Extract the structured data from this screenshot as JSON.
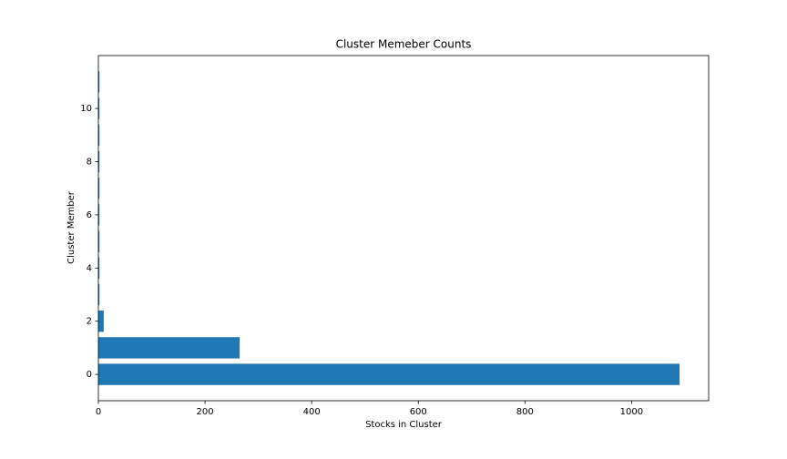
{
  "chart_data": {
    "type": "barh",
    "title": "Cluster Memeber Counts",
    "x_label": "Stocks in Cluster",
    "y_label": "Cluster Member",
    "y": [
      0,
      1,
      2,
      3,
      4,
      5,
      6,
      7,
      8,
      9,
      10,
      11
    ],
    "values": [
      1090,
      265,
      10,
      2,
      2,
      2,
      2,
      2,
      2,
      2,
      2,
      2
    ],
    "color": "#1f77b4",
    "xlim": [
      0,
      1144.5
    ],
    "xticks": [
      0,
      200,
      400,
      600,
      800,
      1000
    ],
    "ylim": [
      -0.99,
      11.99
    ],
    "yticks": [
      0,
      2,
      4,
      6,
      8,
      10
    ],
    "grid": false
  }
}
